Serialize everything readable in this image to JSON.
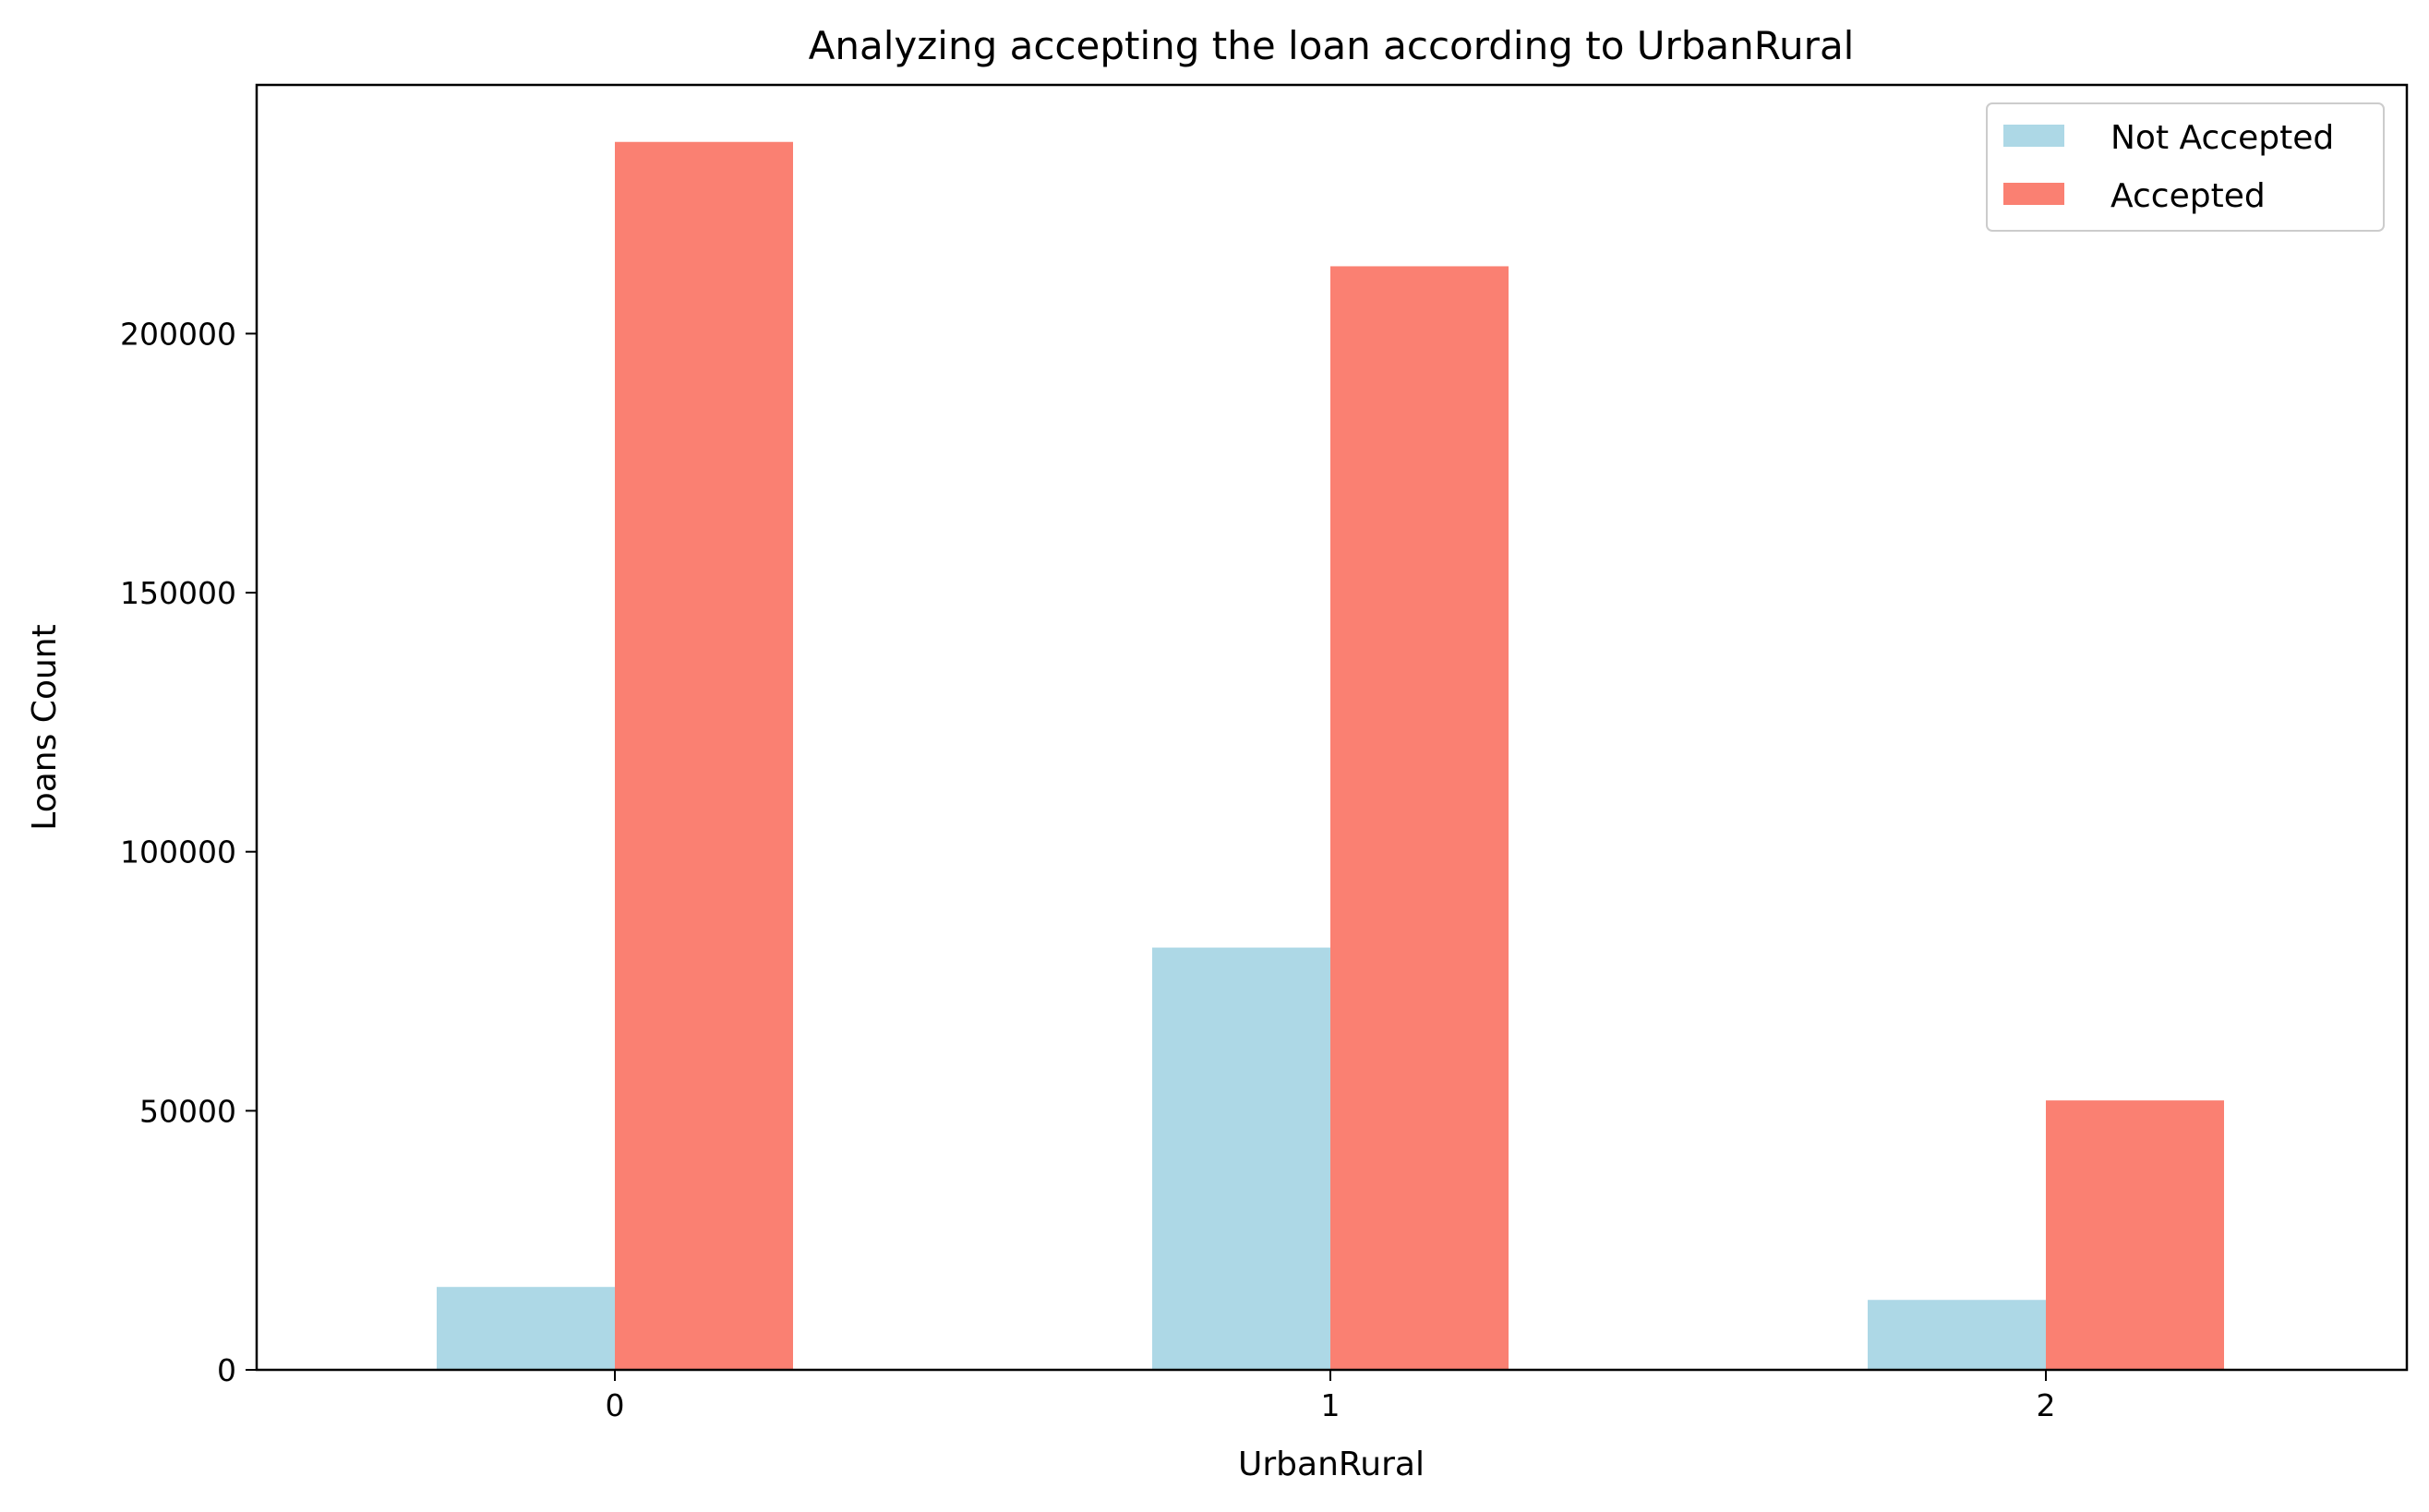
{
  "chart_data": {
    "type": "bar",
    "title": "Analyzing accepting the loan according to UrbanRural",
    "xlabel": "UrbanRural",
    "ylabel": "Loans Count",
    "categories": [
      "0",
      "1",
      "2"
    ],
    "series": [
      {
        "name": "Not Accepted",
        "color": "#add8e6",
        "values": [
          16000,
          81500,
          13500
        ]
      },
      {
        "name": "Accepted",
        "color": "#fa8072",
        "values": [
          237000,
          213000,
          52000
        ]
      }
    ],
    "ylim": [
      0,
      248000
    ],
    "yticks": [
      0,
      50000,
      100000,
      150000,
      200000
    ],
    "ytick_labels": [
      "0",
      "50000",
      "100000",
      "150000",
      "200000"
    ],
    "grid": false,
    "legend_position": "top-right"
  }
}
